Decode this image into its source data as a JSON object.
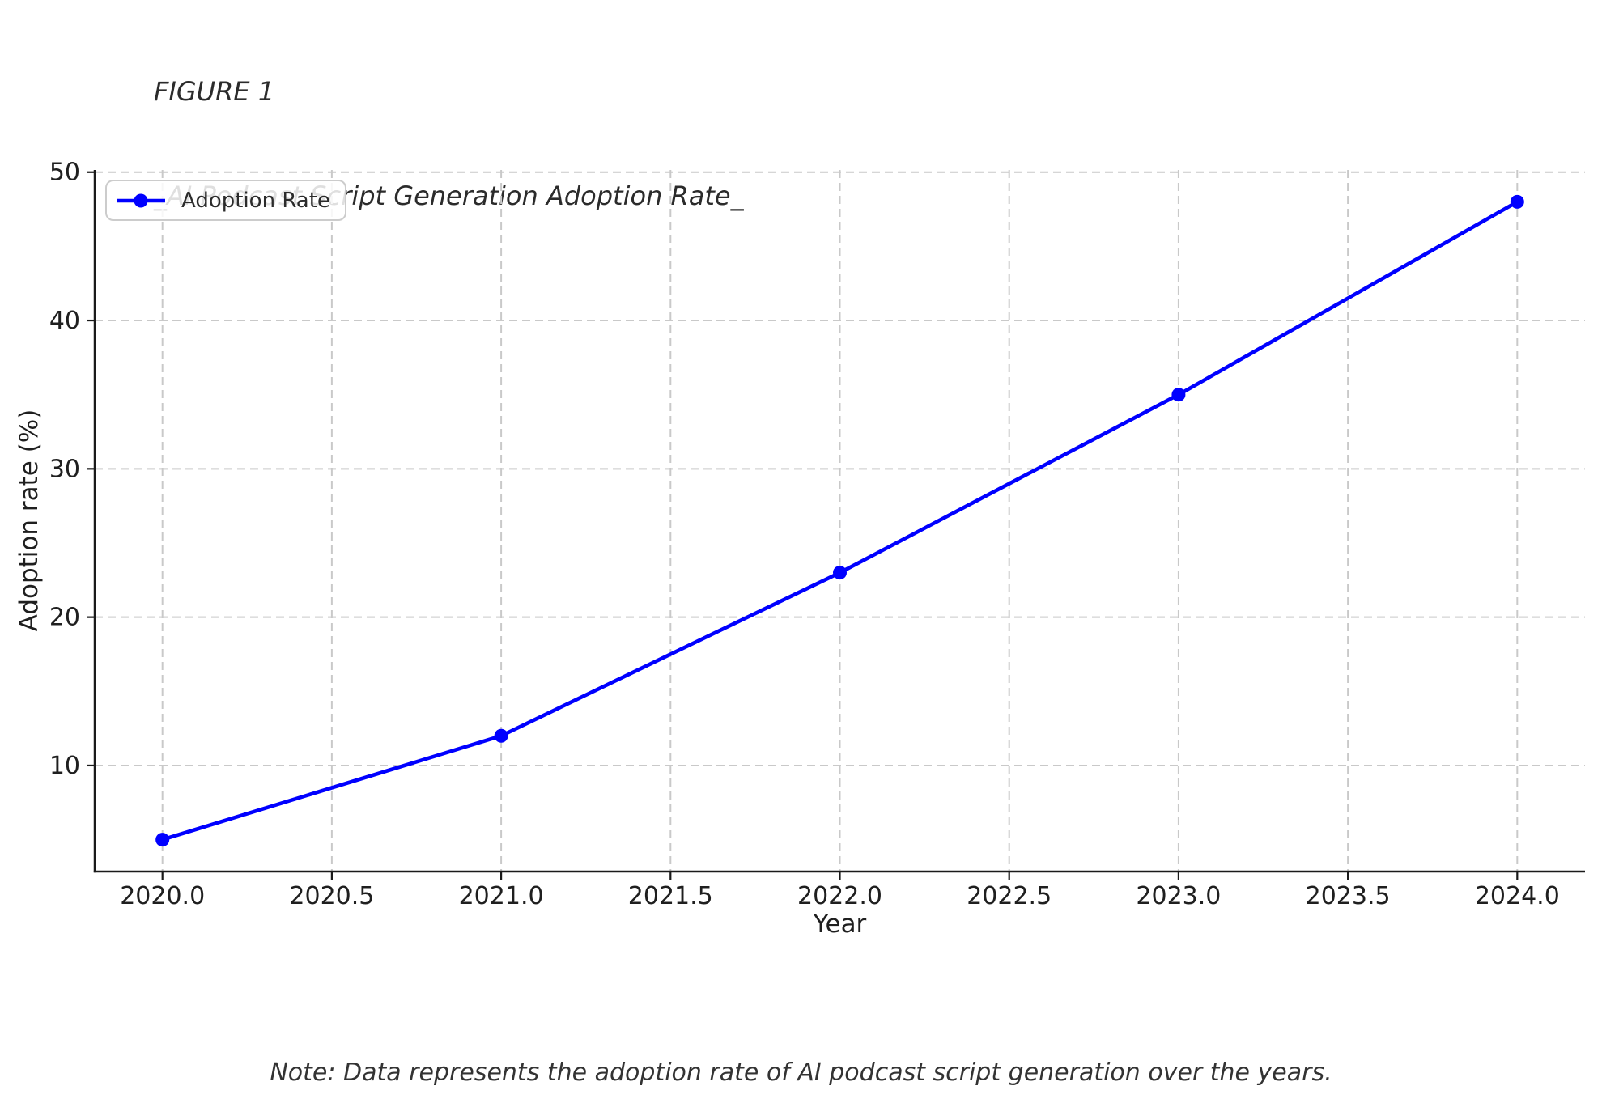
{
  "figure": {
    "title_line1": "FIGURE 1",
    "title_line2": "_AI Podcast Script Generation Adoption Rate_"
  },
  "note": "Note: Data represents the adoption rate of AI podcast script generation over the years.",
  "chart_data": {
    "type": "line",
    "title": "_AI Podcast Script Generation Adoption Rate_",
    "xlabel": "Year",
    "ylabel": "Adoption rate (%)",
    "legend": {
      "label": "Adoption Rate",
      "position": "upper left"
    },
    "series": [
      {
        "name": "Adoption Rate",
        "color": "#0000ff",
        "x": [
          2020,
          2021,
          2022,
          2023,
          2024
        ],
        "y": [
          5,
          12,
          23,
          35,
          48
        ]
      }
    ],
    "xlim": [
      2019.8,
      2024.2
    ],
    "ylim": [
      2.85,
      50.15
    ],
    "xticks": [
      2020.0,
      2020.5,
      2021.0,
      2021.5,
      2022.0,
      2022.5,
      2023.0,
      2023.5,
      2024.0
    ],
    "xtick_labels": [
      "2020.0",
      "2020.5",
      "2021.0",
      "2021.5",
      "2022.0",
      "2022.5",
      "2023.0",
      "2023.5",
      "2024.0"
    ],
    "yticks": [
      10,
      20,
      30,
      40,
      50
    ],
    "ytick_labels": [
      "10",
      "20",
      "30",
      "40",
      "50"
    ],
    "grid": true,
    "grid_style": "dashed",
    "spines": [
      "left",
      "bottom"
    ],
    "colors": {
      "line": "#0000ff",
      "grid": "#c9c9c9",
      "spine": "#1a1a1a",
      "tick_text": "#1f1f1f",
      "note_text": "#333333"
    }
  }
}
